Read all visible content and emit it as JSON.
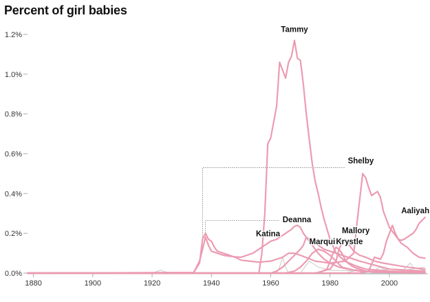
{
  "chart_data": {
    "type": "line",
    "title": "Percent of girl babies",
    "xlabel": "",
    "ylabel": "",
    "xlim": [
      1878,
      2013
    ],
    "ylim": [
      0,
      1.2
    ],
    "x_ticks": [
      1880,
      1900,
      1920,
      1940,
      1960,
      1980,
      2000
    ],
    "y_ticks": [
      {
        "value": 0.0,
        "label": "0.0%"
      },
      {
        "value": 0.2,
        "label": "0.2%"
      },
      {
        "value": 0.4,
        "label": "0.4%"
      },
      {
        "value": 0.6,
        "label": "0.6%"
      },
      {
        "value": 0.8,
        "label": "0.8%"
      },
      {
        "value": 1.0,
        "label": "1.0%"
      },
      {
        "value": 1.2,
        "label": "1.2%"
      }
    ],
    "grid": false,
    "colors": {
      "highlight": "#ec9bb2",
      "background_series": "#c8c8c8",
      "axis": "#aaaaaa",
      "leader": "#777777"
    },
    "series": [
      {
        "name": "Tammy",
        "label_at": [
          1968,
          1.17
        ],
        "points": [
          [
            1878,
            0
          ],
          [
            1956,
            0
          ],
          [
            1957,
            0.1
          ],
          [
            1958,
            0.3
          ],
          [
            1959,
            0.65
          ],
          [
            1960,
            0.68
          ],
          [
            1961,
            0.76
          ],
          [
            1962,
            0.84
          ],
          [
            1963,
            1.06
          ],
          [
            1964,
            1.02
          ],
          [
            1965,
            0.98
          ],
          [
            1966,
            1.06
          ],
          [
            1967,
            1.09
          ],
          [
            1968,
            1.17
          ],
          [
            1969,
            1.08
          ],
          [
            1970,
            1.07
          ],
          [
            1971,
            0.95
          ],
          [
            1972,
            0.8
          ],
          [
            1973,
            0.67
          ],
          [
            1974,
            0.55
          ],
          [
            1975,
            0.46
          ],
          [
            1976,
            0.4
          ],
          [
            1977,
            0.33
          ],
          [
            1978,
            0.27
          ],
          [
            1979,
            0.22
          ],
          [
            1980,
            0.17
          ],
          [
            1982,
            0.1
          ],
          [
            1985,
            0.06
          ],
          [
            1988,
            0.04
          ],
          [
            1992,
            0.02
          ],
          [
            2000,
            0.01
          ],
          [
            2012,
            0.005
          ]
        ]
      },
      {
        "name": "Shelby",
        "label_at": [
          1986,
          0.53
        ],
        "leader": [
          [
            1937,
            0.18
          ],
          [
            1937,
            0.53
          ],
          [
            1985,
            0.53
          ]
        ],
        "points": [
          [
            1878,
            0
          ],
          [
            1934,
            0.003
          ],
          [
            1936,
            0.05
          ],
          [
            1937,
            0.17
          ],
          [
            1938,
            0.2
          ],
          [
            1939,
            0.17
          ],
          [
            1940,
            0.16
          ],
          [
            1941,
            0.13
          ],
          [
            1942,
            0.11
          ],
          [
            1944,
            0.1
          ],
          [
            1946,
            0.09
          ],
          [
            1948,
            0.08
          ],
          [
            1950,
            0.065
          ],
          [
            1953,
            0.06
          ],
          [
            1956,
            0.055
          ],
          [
            1960,
            0.06
          ],
          [
            1964,
            0.08
          ],
          [
            1966,
            0.1
          ],
          [
            1968,
            0.1
          ],
          [
            1970,
            0.09
          ],
          [
            1975,
            0.06
          ],
          [
            1980,
            0.05
          ],
          [
            1985,
            0.06
          ],
          [
            1988,
            0.1
          ],
          [
            1989,
            0.24
          ],
          [
            1990,
            0.37
          ],
          [
            1991,
            0.5
          ],
          [
            1992,
            0.48
          ],
          [
            1993,
            0.43
          ],
          [
            1994,
            0.39
          ],
          [
            1995,
            0.4
          ],
          [
            1996,
            0.41
          ],
          [
            1997,
            0.38
          ],
          [
            1998,
            0.31
          ],
          [
            1999,
            0.27
          ],
          [
            2000,
            0.23
          ],
          [
            2001,
            0.21
          ],
          [
            2002,
            0.19
          ],
          [
            2004,
            0.15
          ],
          [
            2006,
            0.13
          ],
          [
            2008,
            0.1
          ],
          [
            2010,
            0.08
          ],
          [
            2012,
            0.075
          ]
        ]
      },
      {
        "name": "Aaliyah",
        "label_at": [
          2004,
          0.28
        ],
        "points": [
          [
            1878,
            0
          ],
          [
            1990,
            0
          ],
          [
            1993,
            0.01
          ],
          [
            1995,
            0.08
          ],
          [
            1997,
            0.07
          ],
          [
            1998,
            0.1
          ],
          [
            1999,
            0.16
          ],
          [
            2000,
            0.2
          ],
          [
            2001,
            0.24
          ],
          [
            2002,
            0.2
          ],
          [
            2003,
            0.17
          ],
          [
            2004,
            0.165
          ],
          [
            2005,
            0.17
          ],
          [
            2006,
            0.18
          ],
          [
            2007,
            0.19
          ],
          [
            2008,
            0.2
          ],
          [
            2009,
            0.22
          ],
          [
            2010,
            0.25
          ],
          [
            2012,
            0.28
          ]
        ]
      },
      {
        "name": "Deanna",
        "label_at": [
          1964,
          0.235
        ],
        "leader": [
          [
            1938,
            0.18
          ],
          [
            1938,
            0.265
          ],
          [
            1963,
            0.265
          ]
        ],
        "points": [
          [
            1878,
            0
          ],
          [
            1934,
            0.002
          ],
          [
            1936,
            0.06
          ],
          [
            1937,
            0.12
          ],
          [
            1938,
            0.18
          ],
          [
            1939,
            0.14
          ],
          [
            1940,
            0.11
          ],
          [
            1942,
            0.1
          ],
          [
            1944,
            0.09
          ],
          [
            1946,
            0.085
          ],
          [
            1948,
            0.082
          ],
          [
            1950,
            0.08
          ],
          [
            1952,
            0.09
          ],
          [
            1954,
            0.1
          ],
          [
            1956,
            0.12
          ],
          [
            1958,
            0.14
          ],
          [
            1960,
            0.16
          ],
          [
            1962,
            0.17
          ],
          [
            1964,
            0.19
          ],
          [
            1966,
            0.21
          ],
          [
            1967,
            0.22
          ],
          [
            1968,
            0.235
          ],
          [
            1969,
            0.24
          ],
          [
            1970,
            0.23
          ],
          [
            1971,
            0.2
          ],
          [
            1972,
            0.18
          ],
          [
            1973,
            0.17
          ],
          [
            1974,
            0.16
          ],
          [
            1976,
            0.14
          ],
          [
            1978,
            0.12
          ],
          [
            1980,
            0.11
          ],
          [
            1982,
            0.1
          ],
          [
            1984,
            0.09
          ],
          [
            1986,
            0.08
          ],
          [
            1990,
            0.06
          ],
          [
            1995,
            0.04
          ],
          [
            2000,
            0.02
          ],
          [
            2012,
            0.01
          ]
        ]
      },
      {
        "name": "Mallory",
        "label_at": [
          1984,
          0.18
        ],
        "points": [
          [
            1878,
            0
          ],
          [
            1975,
            0
          ],
          [
            1980,
            0.02
          ],
          [
            1982,
            0.06
          ],
          [
            1983,
            0.12
          ],
          [
            1984,
            0.15
          ],
          [
            1985,
            0.17
          ],
          [
            1986,
            0.15
          ],
          [
            1988,
            0.11
          ],
          [
            1990,
            0.09
          ],
          [
            1992,
            0.08
          ],
          [
            1995,
            0.06
          ],
          [
            1998,
            0.05
          ],
          [
            2002,
            0.04
          ],
          [
            2006,
            0.03
          ],
          [
            2012,
            0.02
          ]
        ]
      },
      {
        "name": "Katina",
        "label_at": [
          1955,
          0.165
        ],
        "points": [
          [
            1878,
            0
          ],
          [
            1960,
            0
          ],
          [
            1962,
            0.01
          ],
          [
            1964,
            0.03
          ],
          [
            1966,
            0.06
          ],
          [
            1968,
            0.09
          ],
          [
            1970,
            0.12
          ],
          [
            1971,
            0.14
          ],
          [
            1972,
            0.18
          ],
          [
            1973,
            0.16
          ],
          [
            1974,
            0.14
          ],
          [
            1976,
            0.1
          ],
          [
            1978,
            0.07
          ],
          [
            1980,
            0.05
          ],
          [
            1983,
            0.03
          ],
          [
            1986,
            0.02
          ],
          [
            1990,
            0.01
          ],
          [
            2012,
            0.002
          ]
        ]
      },
      {
        "name": "Marquita",
        "label_at": [
          1973,
          0.125
        ],
        "points": [
          [
            1878,
            0
          ],
          [
            1965,
            0
          ],
          [
            1968,
            0.01
          ],
          [
            1970,
            0.03
          ],
          [
            1972,
            0.06
          ],
          [
            1974,
            0.1
          ],
          [
            1976,
            0.12
          ],
          [
            1978,
            0.11
          ],
          [
            1980,
            0.09
          ],
          [
            1982,
            0.06
          ],
          [
            1984,
            0.03
          ],
          [
            1988,
            0.015
          ],
          [
            1995,
            0.005
          ],
          [
            2012,
            0.002
          ]
        ]
      },
      {
        "name": "Krystle",
        "label_at": [
          1982,
          0.125
        ],
        "points": [
          [
            1878,
            0
          ],
          [
            1976,
            0
          ],
          [
            1979,
            0.02
          ],
          [
            1980,
            0.06
          ],
          [
            1981,
            0.1
          ],
          [
            1982,
            0.13
          ],
          [
            1983,
            0.12
          ],
          [
            1984,
            0.1
          ],
          [
            1985,
            0.07
          ],
          [
            1986,
            0.05
          ],
          [
            1988,
            0.03
          ],
          [
            1992,
            0.01
          ],
          [
            2000,
            0.005
          ],
          [
            2012,
            0.002
          ]
        ]
      }
    ],
    "background_series": [
      {
        "points": [
          [
            1878,
            0
          ],
          [
            1920,
            0
          ],
          [
            1922,
            0.01
          ],
          [
            1923,
            0.015
          ],
          [
            1924,
            0.008
          ],
          [
            1926,
            0.002
          ],
          [
            1935,
            0
          ],
          [
            2012,
            0
          ]
        ]
      },
      {
        "points": [
          [
            1878,
            0
          ],
          [
            1962,
            0
          ],
          [
            1963,
            0.03
          ],
          [
            1964,
            0.08
          ],
          [
            1965,
            0.03
          ],
          [
            1966,
            0
          ],
          [
            2012,
            0
          ]
        ]
      },
      {
        "points": [
          [
            1878,
            0
          ],
          [
            1970,
            0
          ],
          [
            1972,
            0.04
          ],
          [
            1973,
            0.06
          ],
          [
            1974,
            0.05
          ],
          [
            1976,
            0.03
          ],
          [
            1980,
            0.015
          ],
          [
            1990,
            0.01
          ],
          [
            2012,
            0.005
          ]
        ]
      },
      {
        "points": [
          [
            1878,
            0
          ],
          [
            1985,
            0
          ],
          [
            1988,
            0.01
          ],
          [
            1990,
            0.03
          ],
          [
            1992,
            0.02
          ],
          [
            1995,
            0.015
          ],
          [
            1997,
            0.03
          ],
          [
            1998,
            0.02
          ],
          [
            2000,
            0.01
          ],
          [
            2003,
            0.005
          ],
          [
            2005,
            0.02
          ],
          [
            2007,
            0.05
          ],
          [
            2008,
            0.03
          ],
          [
            2010,
            0.02
          ],
          [
            2012,
            0.015
          ]
        ]
      },
      {
        "points": [
          [
            1878,
            0
          ],
          [
            1990,
            0
          ],
          [
            1995,
            0.01
          ],
          [
            2000,
            0.02
          ],
          [
            2005,
            0.015
          ],
          [
            2012,
            0.03
          ]
        ]
      }
    ]
  }
}
